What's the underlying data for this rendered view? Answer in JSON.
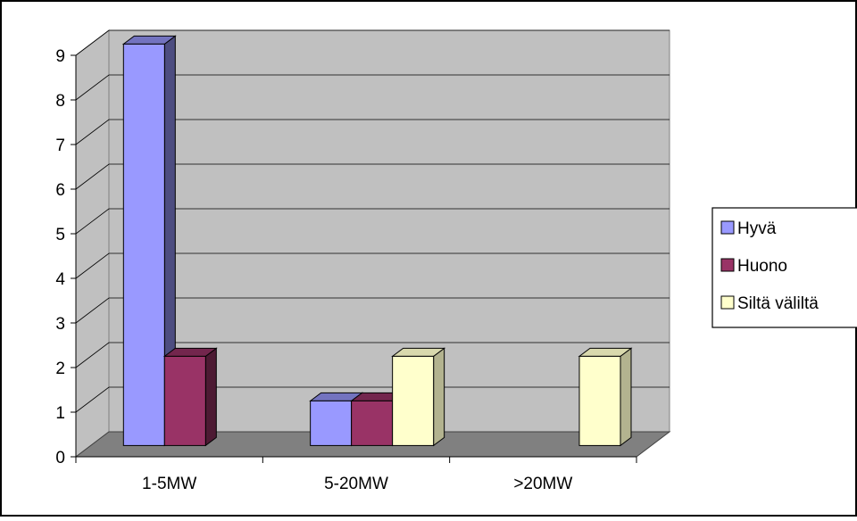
{
  "chart_data": {
    "type": "bar",
    "title": "",
    "xlabel": "",
    "ylabel": "",
    "categories": [
      "1-5MW",
      "5-20MW",
      ">20MW"
    ],
    "series": [
      {
        "name": "Hyvä",
        "values": [
          9,
          1,
          0
        ],
        "color": "#9999ff",
        "side_color": "#4d4d80",
        "top_color": "#7373bf"
      },
      {
        "name": "Huono",
        "values": [
          2,
          1,
          0
        ],
        "color": "#993366",
        "side_color": "#4d1a33",
        "top_color": "#73264d"
      },
      {
        "name": "Siltä väliltä",
        "values": [
          0,
          2,
          2
        ],
        "color": "#ffffcc",
        "side_color": "#b3b38f",
        "top_color": "#d9d9ad"
      }
    ],
    "ylim": [
      0,
      9
    ],
    "yticks": [
      "0",
      "1",
      "2",
      "3",
      "4",
      "5",
      "6",
      "7",
      "8",
      "9"
    ],
    "grid": true,
    "legend_position": "right",
    "colors": {
      "wall": "#c0c0c0",
      "floor": "#808080",
      "gridline": "#000000"
    }
  }
}
